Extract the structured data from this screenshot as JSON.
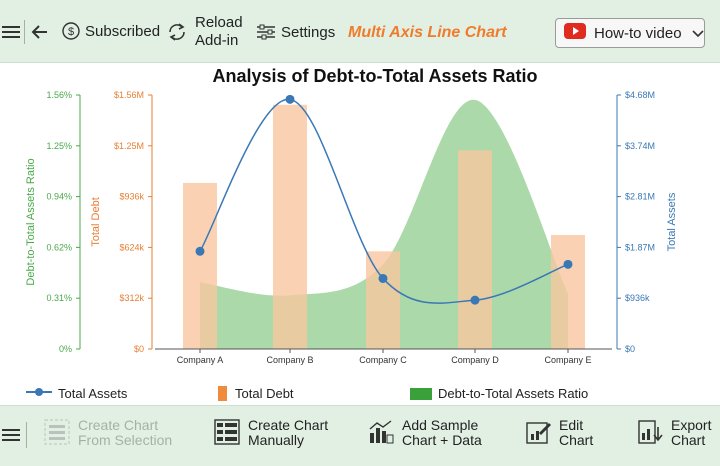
{
  "toolbar": {
    "subscribed_label": "Subscribed",
    "reload_label_line1": "Reload",
    "reload_label_line2": "Add-in",
    "settings_label": "Settings",
    "brand_title": "Multi Axis Line Chart",
    "howto_label": "How-to video"
  },
  "chart_data": {
    "type": "line",
    "title": "Analysis of Debt-to-Total Assets Ratio",
    "categories": [
      "Company A",
      "Company B",
      "Company C",
      "Company D",
      "Company E"
    ],
    "series": [
      {
        "name": "Total Assets",
        "kind": "line",
        "axis": "right",
        "color": "#3a78b5",
        "values": [
          1800000,
          4600000,
          1300000,
          900000,
          1560000
        ]
      },
      {
        "name": "Total Debt",
        "kind": "bar",
        "axis": "left-outer",
        "color": "#f9c7a0",
        "values": [
          1020000,
          1500000,
          600000,
          1220000,
          700000
        ]
      },
      {
        "name": "Debt-to-Total Assets Ratio",
        "kind": "area",
        "axis": "left",
        "color": "#8fcc8c",
        "values": [
          0.0041,
          0.0033,
          0.0052,
          0.0153,
          0.0034
        ]
      }
    ],
    "axes": {
      "ratio": {
        "label": "Debt-to-Total Assets Ratio",
        "ticks": [
          "0%",
          "0.31%",
          "0.62%",
          "0.94%",
          "1.25%",
          "1.56%"
        ],
        "range": [
          0,
          0.0156
        ],
        "color": "#4aa84a"
      },
      "debt": {
        "label": "Total Debt",
        "ticks": [
          "$0",
          "$312k",
          "$624k",
          "$936k",
          "$1.25M",
          "$1.56M"
        ],
        "range": [
          0,
          1560000
        ],
        "color": "#e87e33"
      },
      "assets": {
        "label": "Total Assets",
        "ticks": [
          "$0",
          "$936k",
          "$1.87M",
          "$2.81M",
          "$3.74M",
          "$4.68M"
        ],
        "range": [
          0,
          4680000
        ],
        "color": "#3a78b5"
      }
    },
    "legend": [
      "Total Assets",
      "Total Debt",
      "Debt-to-Total Assets Ratio"
    ],
    "legend_position": "bottom",
    "grid": false
  },
  "bottombar": {
    "create_selection_line1": "Create Chart",
    "create_selection_line2": "From Selection",
    "create_manual_line1": "Create Chart",
    "create_manual_line2": "Manually",
    "add_sample_line1": "Add Sample",
    "add_sample_line2": "Chart + Data",
    "edit_line1": "Edit",
    "edit_line2": "Chart",
    "export_line1": "Export",
    "export_line2": "Chart"
  }
}
